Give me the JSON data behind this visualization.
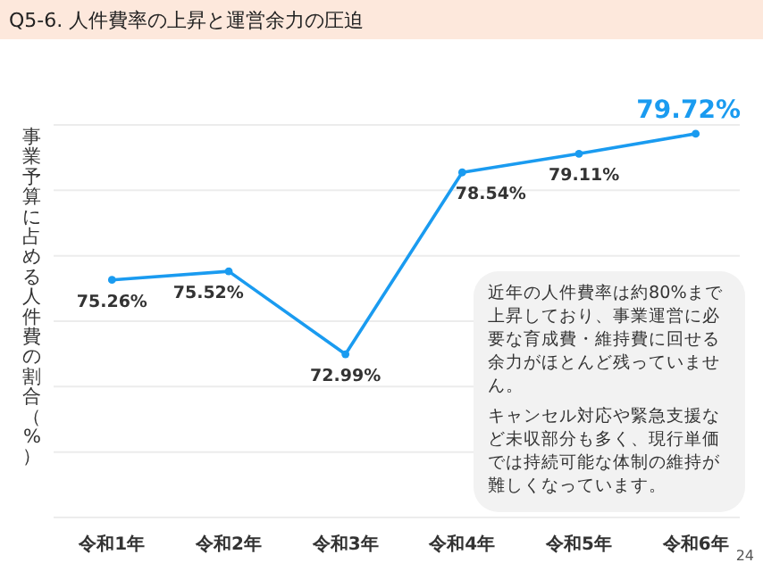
{
  "chart_data": {
    "type": "line",
    "title": "Q5-6. 人件費率の上昇と運営余力の圧迫",
    "ylabel": "事業予算に占める人件費の割合（%）",
    "categories": [
      "令和1年",
      "令和2年",
      "令和3年",
      "令和4年",
      "令和5年",
      "令和6年"
    ],
    "series": [
      {
        "color": "#1a9bf0",
        "values": [
          75.26,
          75.52,
          72.99,
          78.54,
          79.11,
          79.72
        ],
        "value_labels": [
          "75.26%",
          "75.52%",
          "72.99%",
          "78.54%",
          "79.11%",
          "79.72%"
        ]
      }
    ],
    "grid": "y",
    "marker": "circle",
    "line_style": "solid",
    "annotations": [
      "近年の人件費率は約80%まで上昇しており、事業運営に必要な育成費・維持費に回せる余力がほとんど残っていません。",
      "キャンセル対応や緊急支援など未収部分も多く、現行単価では持続可能な体制の維持が難しくなっています。",
      "24"
    ]
  }
}
